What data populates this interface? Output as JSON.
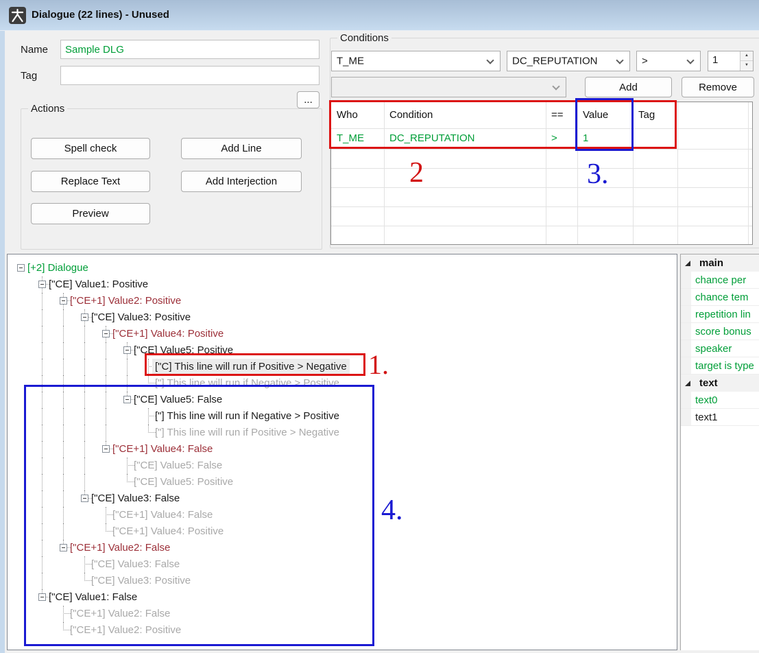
{
  "window": {
    "title": "Dialogue (22 lines) - Unused",
    "icon": "person-icon"
  },
  "form": {
    "name_label": "Name",
    "name_value": "Sample DLG",
    "tag_label": "Tag",
    "tag_value": "",
    "dots_button": "...",
    "actions": {
      "title": "Actions",
      "spell_check": "Spell check",
      "add_line": "Add Line",
      "replace_text": "Replace Text",
      "add_interjection": "Add Interjection",
      "preview": "Preview"
    }
  },
  "conditions": {
    "title": "Conditions",
    "who_value": "T_ME",
    "condition_value": "DC_REPUTATION",
    "operator_value": ">",
    "number_value": "1",
    "extra_combo_value": "",
    "add_label": "Add",
    "remove_label": "Remove",
    "table": {
      "headers": [
        "Who",
        "Condition",
        "==",
        "Value",
        "Tag"
      ],
      "rows": [
        [
          "T_ME",
          "DC_REPUTATION",
          ">",
          "1",
          ""
        ]
      ],
      "empty_row_count": 6
    }
  },
  "tree": {
    "nodes": [
      {
        "text": "[+2] Dialogue",
        "color": "green",
        "depth": 0,
        "box": true,
        "last": true,
        "g": []
      },
      {
        "text": "[\"CE] Value1: Positive",
        "color": "black",
        "depth": 1,
        "box": true,
        "last": false,
        "g": []
      },
      {
        "text": "[\"CE+1] Value2: Positive",
        "color": "maroon",
        "depth": 2,
        "box": true,
        "last": false,
        "g": [
          1
        ]
      },
      {
        "text": "[\"CE] Value3: Positive",
        "color": "black",
        "depth": 3,
        "box": true,
        "last": false,
        "g": [
          1,
          2
        ]
      },
      {
        "text": "[\"CE+1] Value4: Positive",
        "color": "maroon",
        "depth": 4,
        "box": true,
        "last": false,
        "g": [
          1,
          2,
          3
        ]
      },
      {
        "text": "[\"CE] Value5: Positive",
        "color": "black",
        "depth": 5,
        "box": true,
        "last": false,
        "g": [
          1,
          2,
          3,
          4
        ]
      },
      {
        "text": "[\"C] This line will run if Positive > Negative",
        "color": "black",
        "depth": 6,
        "box": false,
        "last": false,
        "g": [
          1,
          2,
          3,
          4,
          5
        ],
        "selected": true
      },
      {
        "text": "[\"] This line will run if Negative > Positive",
        "color": "gray",
        "depth": 6,
        "box": false,
        "last": true,
        "g": [
          1,
          2,
          3,
          4,
          5
        ]
      },
      {
        "text": "[\"CE] Value5: False",
        "color": "black",
        "depth": 5,
        "box": true,
        "last": true,
        "g": [
          1,
          2,
          3,
          4
        ]
      },
      {
        "text": "[\"] This line will run if Negative > Positive",
        "color": "black",
        "depth": 6,
        "box": false,
        "last": false,
        "g": [
          1,
          2,
          3,
          4
        ]
      },
      {
        "text": "[\"] This line will run if Positive > Negative",
        "color": "gray",
        "depth": 6,
        "box": false,
        "last": true,
        "g": [
          1,
          2,
          3,
          4
        ]
      },
      {
        "text": "[\"CE+1] Value4: False",
        "color": "maroon",
        "depth": 4,
        "box": true,
        "last": true,
        "g": [
          1,
          2,
          3
        ]
      },
      {
        "text": "[\"CE] Value5: False",
        "color": "gray",
        "depth": 5,
        "box": false,
        "last": false,
        "g": [
          1,
          2,
          3
        ]
      },
      {
        "text": "[\"CE] Value5: Positive",
        "color": "gray",
        "depth": 5,
        "box": false,
        "last": true,
        "g": [
          1,
          2,
          3
        ]
      },
      {
        "text": "[\"CE] Value3: False",
        "color": "black",
        "depth": 3,
        "box": true,
        "last": true,
        "g": [
          1,
          2
        ]
      },
      {
        "text": "[\"CE+1] Value4: False",
        "color": "gray",
        "depth": 4,
        "box": false,
        "last": false,
        "g": [
          1,
          2
        ]
      },
      {
        "text": "[\"CE+1] Value4: Positive",
        "color": "gray",
        "depth": 4,
        "box": false,
        "last": true,
        "g": [
          1,
          2
        ]
      },
      {
        "text": "[\"CE+1] Value2: False",
        "color": "maroon",
        "depth": 2,
        "box": true,
        "last": true,
        "g": [
          1
        ]
      },
      {
        "text": "[\"CE] Value3: False",
        "color": "gray",
        "depth": 3,
        "box": false,
        "last": false,
        "g": [
          1
        ]
      },
      {
        "text": "[\"CE] Value3: Positive",
        "color": "gray",
        "depth": 3,
        "box": false,
        "last": true,
        "g": [
          1
        ]
      },
      {
        "text": "[\"CE] Value1: False",
        "color": "black",
        "depth": 1,
        "box": true,
        "last": true,
        "g": []
      },
      {
        "text": "[\"CE+1] Value2: False",
        "color": "gray",
        "depth": 2,
        "box": false,
        "last": false,
        "g": []
      },
      {
        "text": "[\"CE+1] Value2: Positive",
        "color": "gray",
        "depth": 2,
        "box": false,
        "last": true,
        "g": []
      }
    ]
  },
  "properties": {
    "groups": [
      {
        "name": "main",
        "items": [
          {
            "label": "chance per",
            "color": "green"
          },
          {
            "label": "chance tem",
            "color": "green"
          },
          {
            "label": "repetition lin",
            "color": "green"
          },
          {
            "label": "score bonus",
            "color": "green"
          },
          {
            "label": "speaker",
            "color": "green"
          },
          {
            "label": "target is type",
            "color": "green"
          }
        ]
      },
      {
        "name": "text",
        "items": [
          {
            "label": "text0",
            "color": "green"
          },
          {
            "label": "text1",
            "color": "black"
          }
        ]
      }
    ]
  },
  "annotations": {
    "n1": "1.",
    "n2": "2",
    "n3": "3.",
    "n4": "4."
  },
  "colors": {
    "green": "#009e38",
    "maroon": "#9c2f38",
    "gray_text": "#a9a9a9",
    "annotation_red": "#dc1414",
    "annotation_blue": "#1a1ad2"
  }
}
